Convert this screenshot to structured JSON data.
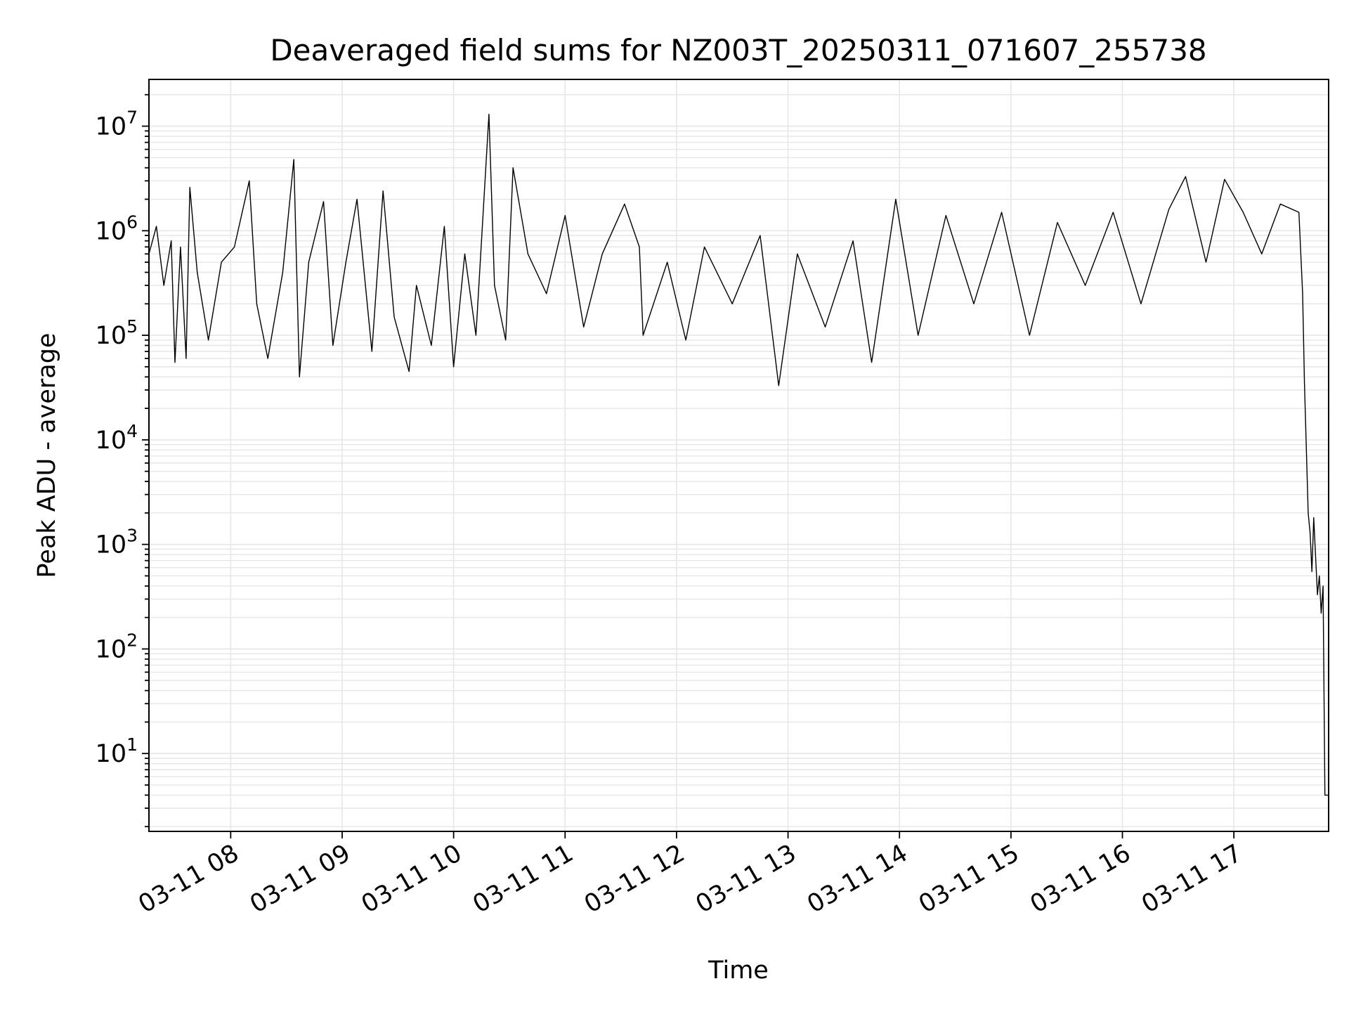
{
  "chart_data": {
    "type": "line",
    "title": "Deaveraged field sums for NZ003T_20250311_071607_255738",
    "xlabel": "Time",
    "ylabel": "Peak ADU - average",
    "yscale": "log",
    "ylim": [
      1.8,
      28000000
    ],
    "xlim": [
      "2025-03-11 07:16",
      "2025-03-11 17:51"
    ],
    "grid": true,
    "x_ticks": [
      {
        "t": "2025-03-11 08:00",
        "label": "03-11 08"
      },
      {
        "t": "2025-03-11 09:00",
        "label": "03-11 09"
      },
      {
        "t": "2025-03-11 10:00",
        "label": "03-11 10"
      },
      {
        "t": "2025-03-11 11:00",
        "label": "03-11 11"
      },
      {
        "t": "2025-03-11 12:00",
        "label": "03-11 12"
      },
      {
        "t": "2025-03-11 13:00",
        "label": "03-11 13"
      },
      {
        "t": "2025-03-11 14:00",
        "label": "03-11 14"
      },
      {
        "t": "2025-03-11 15:00",
        "label": "03-11 15"
      },
      {
        "t": "2025-03-11 16:00",
        "label": "03-11 16"
      },
      {
        "t": "2025-03-11 17:00",
        "label": "03-11 17"
      }
    ],
    "y_ticks": [
      {
        "value": 10,
        "base": "10",
        "exp": "1"
      },
      {
        "value": 100,
        "base": "10",
        "exp": "2"
      },
      {
        "value": 1000,
        "base": "10",
        "exp": "3"
      },
      {
        "value": 10000,
        "base": "10",
        "exp": "4"
      },
      {
        "value": 100000,
        "base": "10",
        "exp": "5"
      },
      {
        "value": 1000000,
        "base": "10",
        "exp": "6"
      },
      {
        "value": 10000000,
        "base": "10",
        "exp": "7"
      }
    ],
    "series": [
      {
        "color": "#000000",
        "points": [
          [
            "2025-03-11 07:16",
            600000
          ],
          [
            "2025-03-11 07:20",
            1100000
          ],
          [
            "2025-03-11 07:24",
            300000
          ],
          [
            "2025-03-11 07:28",
            800000
          ],
          [
            "2025-03-11 07:30",
            55000
          ],
          [
            "2025-03-11 07:33",
            700000
          ],
          [
            "2025-03-11 07:36",
            60000
          ],
          [
            "2025-03-11 07:38",
            2600000
          ],
          [
            "2025-03-11 07:42",
            400000
          ],
          [
            "2025-03-11 07:48",
            90000
          ],
          [
            "2025-03-11 07:55",
            500000
          ],
          [
            "2025-03-11 08:02",
            700000
          ],
          [
            "2025-03-11 08:10",
            3000000
          ],
          [
            "2025-03-11 08:14",
            200000
          ],
          [
            "2025-03-11 08:20",
            60000
          ],
          [
            "2025-03-11 08:28",
            400000
          ],
          [
            "2025-03-11 08:34",
            4800000
          ],
          [
            "2025-03-11 08:37",
            40000
          ],
          [
            "2025-03-11 08:42",
            500000
          ],
          [
            "2025-03-11 08:50",
            1900000
          ],
          [
            "2025-03-11 08:55",
            80000
          ],
          [
            "2025-03-11 09:02",
            500000
          ],
          [
            "2025-03-11 09:08",
            2000000
          ],
          [
            "2025-03-11 09:16",
            70000
          ],
          [
            "2025-03-11 09:22",
            2400000
          ],
          [
            "2025-03-11 09:28",
            150000
          ],
          [
            "2025-03-11 09:36",
            45000
          ],
          [
            "2025-03-11 09:40",
            300000
          ],
          [
            "2025-03-11 09:48",
            80000
          ],
          [
            "2025-03-11 09:55",
            1100000
          ],
          [
            "2025-03-11 10:00",
            50000
          ],
          [
            "2025-03-11 10:06",
            600000
          ],
          [
            "2025-03-11 10:12",
            100000
          ],
          [
            "2025-03-11 10:19",
            13000000
          ],
          [
            "2025-03-11 10:22",
            300000
          ],
          [
            "2025-03-11 10:28",
            90000
          ],
          [
            "2025-03-11 10:32",
            4000000
          ],
          [
            "2025-03-11 10:40",
            600000
          ],
          [
            "2025-03-11 10:50",
            250000
          ],
          [
            "2025-03-11 11:00",
            1400000
          ],
          [
            "2025-03-11 11:10",
            120000
          ],
          [
            "2025-03-11 11:20",
            600000
          ],
          [
            "2025-03-11 11:32",
            1800000
          ],
          [
            "2025-03-11 11:40",
            700000
          ],
          [
            "2025-03-11 11:42",
            100000
          ],
          [
            "2025-03-11 11:55",
            500000
          ],
          [
            "2025-03-11 12:05",
            90000
          ],
          [
            "2025-03-11 12:15",
            700000
          ],
          [
            "2025-03-11 12:30",
            200000
          ],
          [
            "2025-03-11 12:45",
            900000
          ],
          [
            "2025-03-11 12:55",
            33000
          ],
          [
            "2025-03-11 13:05",
            600000
          ],
          [
            "2025-03-11 13:20",
            120000
          ],
          [
            "2025-03-11 13:35",
            800000
          ],
          [
            "2025-03-11 13:45",
            55000
          ],
          [
            "2025-03-11 13:58",
            2000000
          ],
          [
            "2025-03-11 14:10",
            100000
          ],
          [
            "2025-03-11 14:25",
            1400000
          ],
          [
            "2025-03-11 14:40",
            200000
          ],
          [
            "2025-03-11 14:55",
            1500000
          ],
          [
            "2025-03-11 15:10",
            100000
          ],
          [
            "2025-03-11 15:25",
            1200000
          ],
          [
            "2025-03-11 15:40",
            300000
          ],
          [
            "2025-03-11 15:55",
            1500000
          ],
          [
            "2025-03-11 16:10",
            200000
          ],
          [
            "2025-03-11 16:25",
            1600000
          ],
          [
            "2025-03-11 16:34",
            3300000
          ],
          [
            "2025-03-11 16:45",
            500000
          ],
          [
            "2025-03-11 16:55",
            3100000
          ],
          [
            "2025-03-11 17:05",
            1500000
          ],
          [
            "2025-03-11 17:15",
            600000
          ],
          [
            "2025-03-11 17:25",
            1800000
          ],
          [
            "2025-03-11 17:35",
            1500000
          ],
          [
            "2025-03-11 17:37",
            250000
          ],
          [
            "2025-03-11 17:38",
            35000
          ],
          [
            "2025-03-11 17:40",
            2000
          ],
          [
            "2025-03-11 17:41",
            1300
          ],
          [
            "2025-03-11 17:42",
            550
          ],
          [
            "2025-03-11 17:43",
            1800
          ],
          [
            "2025-03-11 17:45",
            330
          ],
          [
            "2025-03-11 17:46",
            500
          ],
          [
            "2025-03-11 17:47",
            220
          ],
          [
            "2025-03-11 17:48",
            400
          ],
          [
            "2025-03-11 17:49",
            4
          ],
          [
            "2025-03-11 17:51",
            4
          ]
        ]
      }
    ]
  }
}
